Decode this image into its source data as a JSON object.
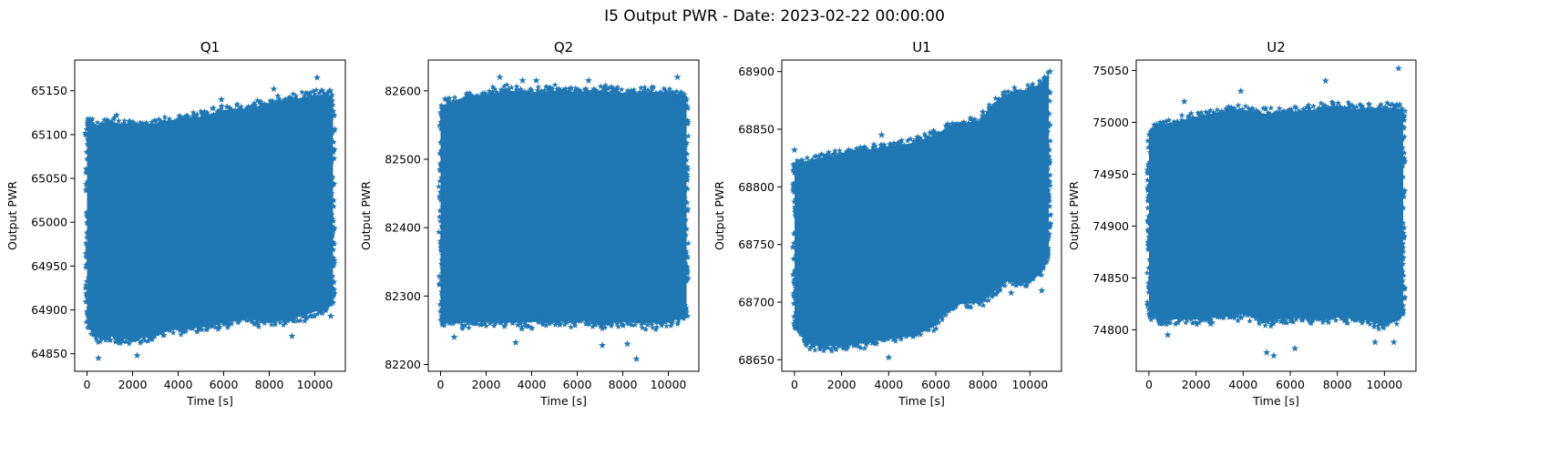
{
  "figure": {
    "suptitle": "I5 Output PWR - Date: 2023-02-22 00:00:00"
  },
  "chart_data": [
    {
      "type": "scatter",
      "title": "Q1",
      "xlabel": "Time [s]",
      "ylabel": "Output PWR",
      "xlim": [
        -540,
        11340
      ],
      "ylim": [
        64830,
        65185
      ],
      "xticks": [
        0,
        2000,
        4000,
        6000,
        8000,
        10000
      ],
      "yticks": [
        64850,
        64900,
        64950,
        65000,
        65050,
        65100,
        65150
      ],
      "marker": "*",
      "color": "#1f77b4",
      "band": {
        "x": [
          0,
          500,
          1000,
          2000,
          3000,
          4000,
          5000,
          6000,
          7000,
          8000,
          9000,
          10000,
          10800
        ],
        "upper": [
          65118,
          65110,
          65115,
          65110,
          65112,
          65118,
          65120,
          65128,
          65130,
          65135,
          65140,
          65145,
          65145
        ],
        "lower": [
          64880,
          64868,
          64870,
          64865,
          64872,
          64878,
          64880,
          64885,
          64890,
          64885,
          64890,
          64898,
          64905
        ]
      },
      "outliers": [
        [
          500,
          64845
        ],
        [
          2200,
          64848
        ],
        [
          9000,
          64870
        ],
        [
          10100,
          65165
        ],
        [
          8200,
          65152
        ],
        [
          5900,
          65140
        ],
        [
          10700,
          64893
        ],
        [
          1300,
          65122
        ]
      ]
    },
    {
      "type": "scatter",
      "title": "Q2",
      "xlabel": "Time [s]",
      "ylabel": "Output PWR",
      "xlim": [
        -540,
        11340
      ],
      "ylim": [
        82190,
        82645
      ],
      "xticks": [
        0,
        2000,
        4000,
        6000,
        8000,
        10000
      ],
      "yticks": [
        82200,
        82300,
        82400,
        82500,
        82600
      ],
      "marker": "*",
      "color": "#1f77b4",
      "band": {
        "x": [
          0,
          500,
          1000,
          2000,
          3000,
          4000,
          5000,
          6000,
          7000,
          8000,
          9000,
          10000,
          10800
        ],
        "upper": [
          82570,
          82585,
          82590,
          82595,
          82600,
          82598,
          82600,
          82598,
          82600,
          82597,
          82598,
          82598,
          82592
        ],
        "lower": [
          82265,
          82258,
          82262,
          82262,
          82262,
          82262,
          82262,
          82265,
          82260,
          82262,
          82260,
          82262,
          82270
        ]
      },
      "outliers": [
        [
          2600,
          82620
        ],
        [
          3600,
          82615
        ],
        [
          4200,
          82615
        ],
        [
          6500,
          82615
        ],
        [
          10400,
          82620
        ],
        [
          8600,
          82208
        ],
        [
          7100,
          82228
        ],
        [
          3300,
          82232
        ],
        [
          600,
          82240
        ],
        [
          8200,
          82230
        ],
        [
          200,
          82588
        ]
      ]
    },
    {
      "type": "scatter",
      "title": "U1",
      "xlabel": "Time [s]",
      "ylabel": "Output PWR",
      "xlim": [
        -540,
        11340
      ],
      "ylim": [
        68640,
        68910
      ],
      "xticks": [
        0,
        2000,
        4000,
        6000,
        8000,
        10000
      ],
      "yticks": [
        68650,
        68700,
        68750,
        68800,
        68850,
        68900
      ],
      "marker": "*",
      "color": "#1f77b4",
      "band": {
        "x": [
          0,
          500,
          1000,
          2000,
          3000,
          4000,
          5000,
          6000,
          6500,
          7000,
          8000,
          8400,
          9000,
          10000,
          10500,
          10800
        ],
        "upper": [
          68820,
          68822,
          68825,
          68828,
          68832,
          68835,
          68838,
          68845,
          68852,
          68855,
          68858,
          68872,
          68880,
          68885,
          68890,
          68898
        ],
        "lower": [
          68680,
          68665,
          68662,
          68662,
          68665,
          68668,
          68672,
          68680,
          68695,
          68698,
          68700,
          68708,
          68718,
          68718,
          68725,
          68740
        ]
      },
      "outliers": [
        [
          4000,
          68652
        ],
        [
          10500,
          68710
        ],
        [
          9200,
          68708
        ],
        [
          0,
          68832
        ],
        [
          3700,
          68845
        ],
        [
          8000,
          68865
        ],
        [
          10850,
          68900
        ]
      ]
    },
    {
      "type": "scatter",
      "title": "U2",
      "xlabel": "Time [s]",
      "ylabel": "Output PWR",
      "xlim": [
        -540,
        11340
      ],
      "ylim": [
        74760,
        75060
      ],
      "xticks": [
        0,
        2000,
        4000,
        6000,
        8000,
        10000
      ],
      "yticks": [
        74800,
        74850,
        74900,
        74950,
        75000,
        75050
      ],
      "marker": "*",
      "color": "#1f77b4",
      "band": {
        "x": [
          0,
          500,
          1000,
          2000,
          3000,
          4000,
          5000,
          6000,
          7000,
          8000,
          9000,
          10000,
          10800
        ],
        "upper": [
          74990,
          74998,
          75000,
          75005,
          75010,
          75012,
          75008,
          75010,
          75012,
          75015,
          75012,
          75015,
          75012
        ],
        "lower": [
          74815,
          74808,
          74810,
          74810,
          74812,
          74815,
          74808,
          74812,
          74810,
          74812,
          74810,
          74805,
          74815
        ]
      },
      "outliers": [
        [
          10600,
          75052
        ],
        [
          1500,
          75020
        ],
        [
          3900,
          75030
        ],
        [
          7500,
          75040
        ],
        [
          5000,
          74778
        ],
        [
          5300,
          74775
        ],
        [
          10400,
          74788
        ],
        [
          6200,
          74782
        ],
        [
          800,
          74795
        ],
        [
          9600,
          74788
        ]
      ]
    }
  ]
}
